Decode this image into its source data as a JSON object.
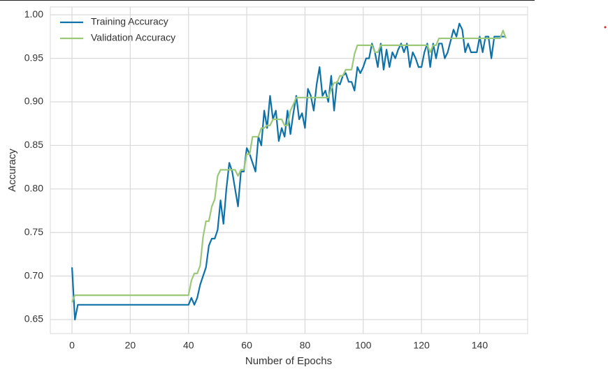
{
  "chart_data": {
    "type": "line",
    "xlabel": "Number of Epochs",
    "ylabel": "Accuracy",
    "x": [
      0,
      1,
      2,
      3,
      4,
      5,
      6,
      7,
      8,
      9,
      10,
      11,
      12,
      13,
      14,
      15,
      16,
      17,
      18,
      19,
      20,
      21,
      22,
      23,
      24,
      25,
      26,
      27,
      28,
      29,
      30,
      31,
      32,
      33,
      34,
      35,
      36,
      37,
      38,
      39,
      40,
      41,
      42,
      43,
      44,
      45,
      46,
      47,
      48,
      49,
      50,
      51,
      52,
      53,
      54,
      55,
      56,
      57,
      58,
      59,
      60,
      61,
      62,
      63,
      64,
      65,
      66,
      67,
      68,
      69,
      70,
      71,
      72,
      73,
      74,
      75,
      76,
      77,
      78,
      79,
      80,
      81,
      82,
      83,
      84,
      85,
      86,
      87,
      88,
      89,
      90,
      91,
      92,
      93,
      94,
      95,
      96,
      97,
      98,
      99,
      100,
      101,
      102,
      103,
      104,
      105,
      106,
      107,
      108,
      109,
      110,
      111,
      112,
      113,
      114,
      115,
      116,
      117,
      118,
      119,
      120,
      121,
      122,
      123,
      124,
      125,
      126,
      127,
      128,
      129,
      130,
      131,
      132,
      133,
      134,
      135,
      136,
      137,
      138,
      139,
      140,
      141,
      142,
      143,
      144,
      145,
      146,
      147,
      148,
      149
    ],
    "series": [
      {
        "name": "Training Accuracy",
        "color": "#0e72a8",
        "values": [
          0.71,
          0.65,
          0.667,
          0.667,
          0.667,
          0.667,
          0.667,
          0.667,
          0.667,
          0.667,
          0.667,
          0.667,
          0.667,
          0.667,
          0.667,
          0.667,
          0.667,
          0.667,
          0.667,
          0.667,
          0.667,
          0.667,
          0.667,
          0.667,
          0.667,
          0.667,
          0.667,
          0.667,
          0.667,
          0.667,
          0.667,
          0.667,
          0.667,
          0.667,
          0.667,
          0.667,
          0.667,
          0.667,
          0.667,
          0.667,
          0.667,
          0.675,
          0.667,
          0.675,
          0.69,
          0.7,
          0.71,
          0.735,
          0.743,
          0.743,
          0.753,
          0.787,
          0.76,
          0.8,
          0.83,
          0.82,
          0.8,
          0.78,
          0.82,
          0.82,
          0.847,
          0.84,
          0.83,
          0.82,
          0.86,
          0.85,
          0.89,
          0.87,
          0.907,
          0.88,
          0.89,
          0.855,
          0.87,
          0.86,
          0.89,
          0.863,
          0.887,
          0.907,
          0.88,
          0.887,
          0.87,
          0.915,
          0.907,
          0.89,
          0.92,
          0.94,
          0.907,
          0.913,
          0.9,
          0.93,
          0.89,
          0.923,
          0.92,
          0.93,
          0.933,
          0.923,
          0.923,
          0.913,
          0.94,
          0.933,
          0.94,
          0.95,
          0.95,
          0.967,
          0.957,
          0.94,
          0.967,
          0.937,
          0.96,
          0.94,
          0.957,
          0.95,
          0.96,
          0.967,
          0.957,
          0.967,
          0.94,
          0.957,
          0.95,
          0.94,
          0.94,
          0.957,
          0.967,
          0.94,
          0.967,
          0.95,
          0.967,
          0.967,
          0.95,
          0.957,
          0.97,
          0.983,
          0.975,
          0.99,
          0.983,
          0.957,
          0.967,
          0.957,
          0.957,
          0.957,
          0.975,
          0.957,
          0.975,
          0.975,
          0.95,
          0.975,
          0.975,
          0.975,
          0.975,
          0.975
        ]
      },
      {
        "name": "Validation Accuracy",
        "color": "#9cc87a",
        "values": [
          0.67,
          0.678,
          0.678,
          0.678,
          0.678,
          0.678,
          0.678,
          0.678,
          0.678,
          0.678,
          0.678,
          0.678,
          0.678,
          0.678,
          0.678,
          0.678,
          0.678,
          0.678,
          0.678,
          0.678,
          0.678,
          0.678,
          0.678,
          0.678,
          0.678,
          0.678,
          0.678,
          0.678,
          0.678,
          0.678,
          0.678,
          0.678,
          0.678,
          0.678,
          0.678,
          0.678,
          0.678,
          0.678,
          0.678,
          0.678,
          0.678,
          0.695,
          0.703,
          0.703,
          0.712,
          0.745,
          0.763,
          0.763,
          0.78,
          0.788,
          0.815,
          0.822,
          0.822,
          0.822,
          0.822,
          0.822,
          0.822,
          0.815,
          0.822,
          0.822,
          0.84,
          0.84,
          0.86,
          0.86,
          0.86,
          0.87,
          0.87,
          0.873,
          0.873,
          0.88,
          0.88,
          0.88,
          0.88,
          0.873,
          0.873,
          0.89,
          0.897,
          0.905,
          0.905,
          0.905,
          0.905,
          0.905,
          0.905,
          0.905,
          0.905,
          0.905,
          0.905,
          0.905,
          0.905,
          0.915,
          0.922,
          0.922,
          0.93,
          0.93,
          0.937,
          0.937,
          0.937,
          0.955,
          0.965,
          0.965,
          0.965,
          0.965,
          0.965,
          0.965,
          0.957,
          0.957,
          0.965,
          0.965,
          0.965,
          0.965,
          0.965,
          0.965,
          0.965,
          0.965,
          0.965,
          0.965,
          0.965,
          0.965,
          0.965,
          0.965,
          0.965,
          0.965,
          0.965,
          0.957,
          0.965,
          0.965,
          0.973,
          0.973,
          0.973,
          0.973,
          0.973,
          0.973,
          0.973,
          0.973,
          0.973,
          0.973,
          0.973,
          0.973,
          0.973,
          0.973,
          0.973,
          0.973,
          0.973,
          0.973,
          0.973,
          0.973,
          0.973,
          0.973,
          0.982,
          0.973
        ]
      }
    ],
    "xlim": [
      -7.45,
      156.45
    ],
    "ylim": [
      0.634,
      1.009
    ],
    "xticks": [
      0,
      20,
      40,
      60,
      80,
      100,
      120,
      140
    ],
    "yticks": [
      0.65,
      {
        "value": 0.7,
        "label": "0.70"
      },
      0.75,
      {
        "value": 0.8,
        "label": "0.80"
      },
      0.85,
      {
        "value": 0.9,
        "label": "0.90"
      },
      0.95,
      {
        "value": 1,
        "label": "1.00"
      }
    ],
    "grid": true,
    "legend": "upper left"
  }
}
